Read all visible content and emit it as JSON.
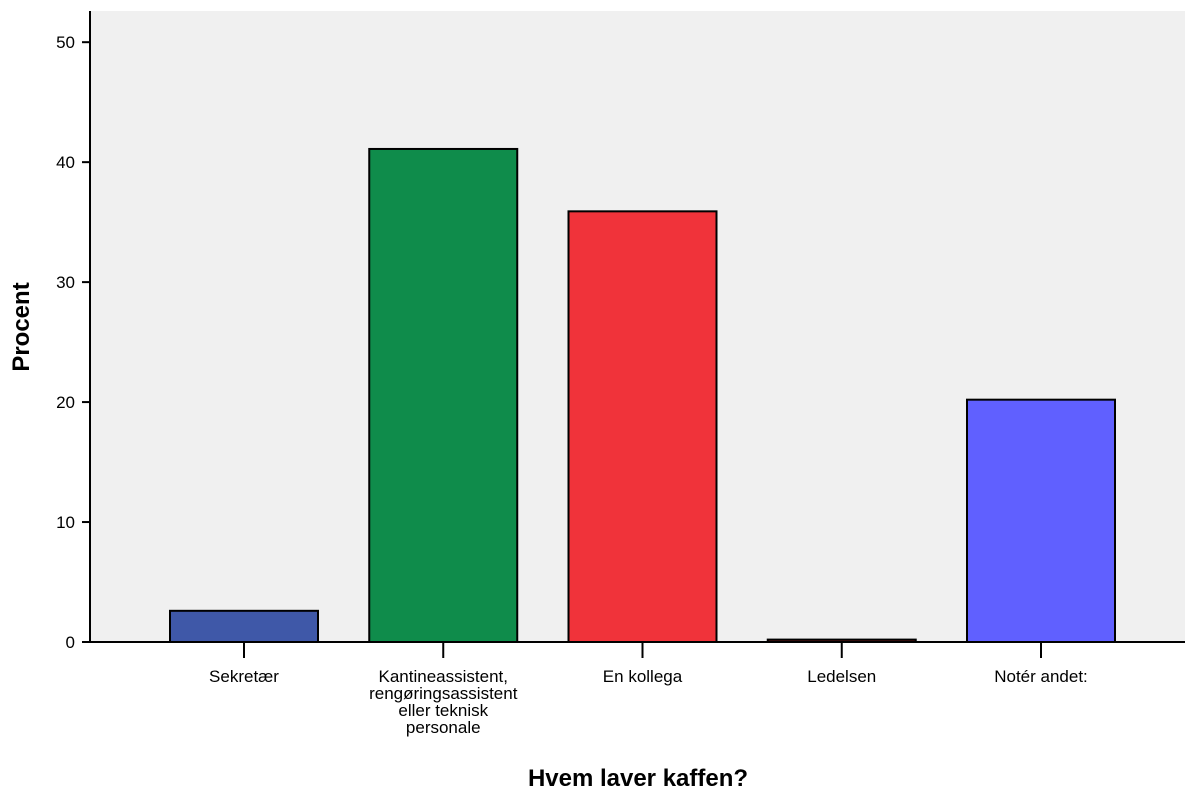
{
  "chart_data": {
    "type": "bar",
    "categories": [
      [
        "Sekretær"
      ],
      [
        "Kantineassistent,",
        "rengøringsassistent",
        "eller teknisk",
        "personale"
      ],
      [
        "En kollega"
      ],
      [
        "Ledelsen"
      ],
      [
        "Notér andet:"
      ]
    ],
    "values": [
      2.6,
      41.1,
      35.9,
      0.2,
      20.2
    ],
    "bar_colors": [
      "#3f58a8",
      "#0f8c4b",
      "#f0333a",
      "#7b1f18",
      "#6060ff"
    ],
    "xlabel": "Hvem laver kaffen?",
    "ylabel": "Procent",
    "ylim": [
      0,
      52.6
    ],
    "yticks": [
      0,
      10,
      20,
      30,
      40,
      50
    ],
    "plot_background": "#f0f0f0",
    "grid": false
  }
}
